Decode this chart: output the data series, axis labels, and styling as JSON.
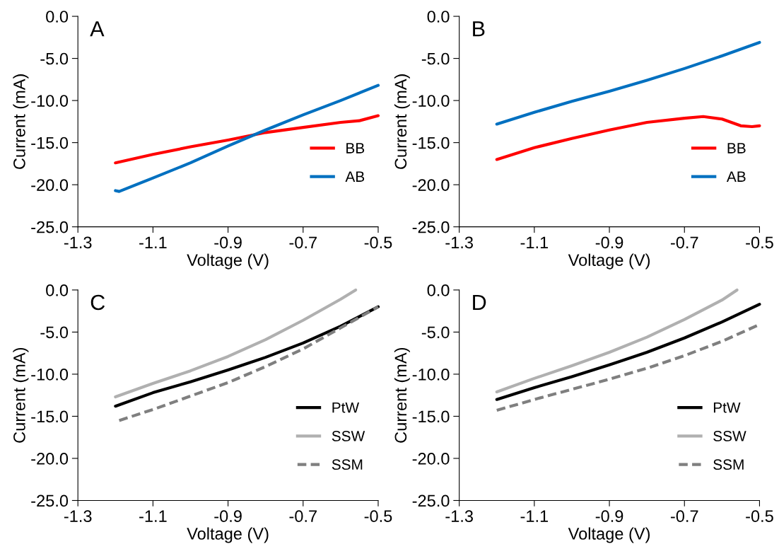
{
  "chart_data": [
    {
      "type": "line",
      "title": "A",
      "xlabel": "Voltage (V)",
      "ylabel": "Current (mA)",
      "xlim": [
        -1.3,
        -0.5
      ],
      "xticks": [
        -1.3,
        -1.1,
        -0.9,
        -0.7,
        -0.5
      ],
      "ylim": [
        -25,
        0
      ],
      "yticks": [
        {
          "value": -25,
          "label": "-25.0"
        },
        {
          "value": -20,
          "label": "-20.0"
        },
        {
          "value": -15,
          "label": "-15.0"
        },
        {
          "value": -10,
          "label": "-10.0"
        },
        {
          "value": -5,
          "label": "-5.0"
        },
        {
          "value": 0,
          "label": "0.0"
        }
      ],
      "grid": false,
      "legend": "right",
      "marker": "none",
      "series": [
        {
          "name": "BB",
          "color": "#ff0000",
          "line_style": "solid",
          "x": [
            -1.2,
            -1.1,
            -1.0,
            -0.9,
            -0.8,
            -0.7,
            -0.6,
            -0.55,
            -0.5
          ],
          "values": [
            -17.4,
            -16.4,
            -15.5,
            -14.7,
            -13.8,
            -13.2,
            -12.6,
            -12.4,
            -11.8
          ]
        },
        {
          "name": "AB",
          "color": "#0070c0",
          "line_style": "solid",
          "x": [
            -1.2,
            -1.19,
            -1.1,
            -1.0,
            -0.9,
            -0.8,
            -0.7,
            -0.6,
            -0.5
          ],
          "values": [
            -20.7,
            -20.8,
            -19.2,
            -17.4,
            -15.4,
            -13.5,
            -11.7,
            -10.0,
            -8.2
          ]
        }
      ]
    },
    {
      "type": "line",
      "title": "B",
      "xlabel": "Voltage (V)",
      "ylabel": "Current (mA)",
      "xlim": [
        -1.3,
        -0.5
      ],
      "xticks": [
        -1.3,
        -1.1,
        -0.9,
        -0.7,
        -0.5
      ],
      "ylim": [
        -25,
        0
      ],
      "yticks": [
        {
          "value": -25,
          "label": "-25.0"
        },
        {
          "value": -20,
          "label": "-20.0"
        },
        {
          "value": -15,
          "label": "-15.0"
        },
        {
          "value": -10,
          "label": "-10.0"
        },
        {
          "value": -5,
          "label": "-5.0"
        },
        {
          "value": 0,
          "label": "0.0"
        }
      ],
      "grid": false,
      "legend": "right",
      "marker": "none",
      "series": [
        {
          "name": "BB",
          "color": "#ff0000",
          "line_style": "solid",
          "x": [
            -1.2,
            -1.1,
            -1.0,
            -0.9,
            -0.8,
            -0.7,
            -0.65,
            -0.6,
            -0.55,
            -0.52,
            -0.5
          ],
          "values": [
            -17.0,
            -15.6,
            -14.5,
            -13.5,
            -12.6,
            -12.1,
            -11.9,
            -12.2,
            -13.0,
            -13.1,
            -13.0
          ]
        },
        {
          "name": "AB",
          "color": "#0070c0",
          "line_style": "solid",
          "x": [
            -1.2,
            -1.1,
            -1.0,
            -0.9,
            -0.8,
            -0.7,
            -0.6,
            -0.5
          ],
          "values": [
            -12.8,
            -11.4,
            -10.1,
            -8.9,
            -7.6,
            -6.2,
            -4.7,
            -3.1
          ]
        }
      ]
    },
    {
      "type": "line",
      "title": "C",
      "xlabel": "Voltage (V)",
      "ylabel": "Current (mA)",
      "xlim": [
        -1.3,
        -0.5
      ],
      "xticks": [
        -1.3,
        -1.1,
        -0.9,
        -0.7,
        -0.5
      ],
      "ylim": [
        -25,
        0
      ],
      "yticks": [
        {
          "value": -25,
          "label": "-25.0"
        },
        {
          "value": -20,
          "label": "-20.0"
        },
        {
          "value": -15,
          "label": "-15.0"
        },
        {
          "value": -10,
          "label": "-10.0"
        },
        {
          "value": -5,
          "label": "-5.0"
        },
        {
          "value": 0,
          "label": "0.0"
        }
      ],
      "grid": false,
      "legend": "right",
      "marker": "none",
      "series": [
        {
          "name": "PtW",
          "color": "#000000",
          "line_style": "solid",
          "x": [
            -1.2,
            -1.1,
            -1.0,
            -0.9,
            -0.8,
            -0.7,
            -0.6,
            -0.5
          ],
          "values": [
            -13.8,
            -12.2,
            -10.9,
            -9.5,
            -8.0,
            -6.3,
            -4.3,
            -2.0
          ]
        },
        {
          "name": "SSW",
          "color": "#b0b0b0",
          "line_style": "solid",
          "x": [
            -1.2,
            -1.1,
            -1.0,
            -0.9,
            -0.8,
            -0.7,
            -0.6,
            -0.56
          ],
          "values": [
            -12.7,
            -11.1,
            -9.6,
            -7.9,
            -5.9,
            -3.6,
            -1.1,
            0.0
          ]
        },
        {
          "name": "SSM",
          "color": "#7f7f7f",
          "line_style": "dashed",
          "x": [
            -1.19,
            -1.1,
            -1.0,
            -0.9,
            -0.8,
            -0.7,
            -0.6,
            -0.5
          ],
          "values": [
            -15.5,
            -14.2,
            -12.6,
            -11.0,
            -9.1,
            -7.0,
            -4.5,
            -2.0
          ]
        }
      ]
    },
    {
      "type": "line",
      "title": "D",
      "xlabel": "Voltage (V)",
      "ylabel": "Current (mA)",
      "xlim": [
        -1.3,
        -0.5
      ],
      "xticks": [
        -1.3,
        -1.1,
        -0.9,
        -0.7,
        -0.5
      ],
      "ylim": [
        -25,
        0
      ],
      "yticks": [
        {
          "value": -25,
          "label": "-25.0"
        },
        {
          "value": -20,
          "label": "-20.0"
        },
        {
          "value": -15,
          "label": "-15.0"
        },
        {
          "value": -10,
          "label": "-10.0"
        },
        {
          "value": -5,
          "label": "-5.0"
        },
        {
          "value": 0,
          "label": "0.0"
        }
      ],
      "grid": false,
      "legend": "right",
      "marker": "none",
      "series": [
        {
          "name": "PtW",
          "color": "#000000",
          "line_style": "solid",
          "x": [
            -1.2,
            -1.1,
            -1.0,
            -0.9,
            -0.8,
            -0.7,
            -0.6,
            -0.5
          ],
          "values": [
            -13.0,
            -11.6,
            -10.3,
            -8.9,
            -7.4,
            -5.7,
            -3.8,
            -1.7
          ]
        },
        {
          "name": "SSW",
          "color": "#b0b0b0",
          "line_style": "solid",
          "x": [
            -1.2,
            -1.1,
            -1.0,
            -0.9,
            -0.8,
            -0.7,
            -0.6,
            -0.56
          ],
          "values": [
            -12.1,
            -10.5,
            -9.0,
            -7.4,
            -5.6,
            -3.5,
            -1.2,
            0.0
          ]
        },
        {
          "name": "SSM",
          "color": "#7f7f7f",
          "line_style": "dashed",
          "x": [
            -1.2,
            -1.1,
            -1.0,
            -0.9,
            -0.8,
            -0.7,
            -0.6,
            -0.5
          ],
          "values": [
            -14.3,
            -13.0,
            -11.8,
            -10.6,
            -9.3,
            -7.8,
            -6.1,
            -4.1
          ]
        }
      ]
    }
  ]
}
